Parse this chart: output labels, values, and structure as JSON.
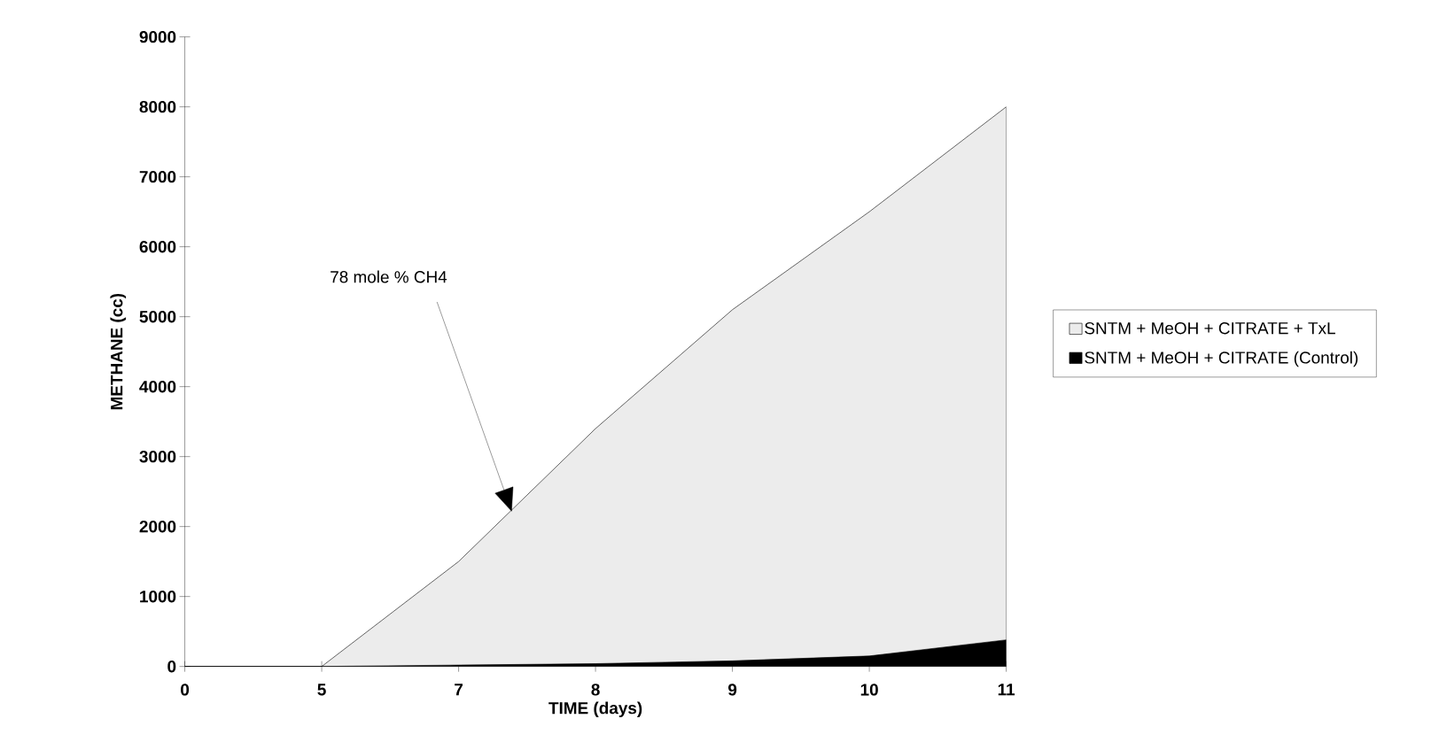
{
  "chart_data": {
    "type": "area",
    "xlabel": "TIME (days)",
    "ylabel": "METHANE (cc)",
    "categories": [
      "0",
      "5",
      "7",
      "8",
      "9",
      "10",
      "11"
    ],
    "series": [
      {
        "name": "SNTM + MeOH + CITRATE + TxL",
        "color": "#ececec",
        "values": [
          0,
          0,
          1500,
          3400,
          5100,
          6500,
          8000
        ]
      },
      {
        "name": "SNTM + MeOH + CITRATE (Control)",
        "color": "#000000",
        "values": [
          0,
          0,
          20,
          40,
          80,
          150,
          380
        ]
      }
    ],
    "ylim": [
      0,
      9000
    ],
    "yticks": [
      0,
      1000,
      2000,
      3000,
      4000,
      5000,
      6000,
      7000,
      8000,
      9000
    ],
    "annotations": [
      "78 mole % CH4"
    ],
    "grid": false,
    "legend": "right"
  }
}
